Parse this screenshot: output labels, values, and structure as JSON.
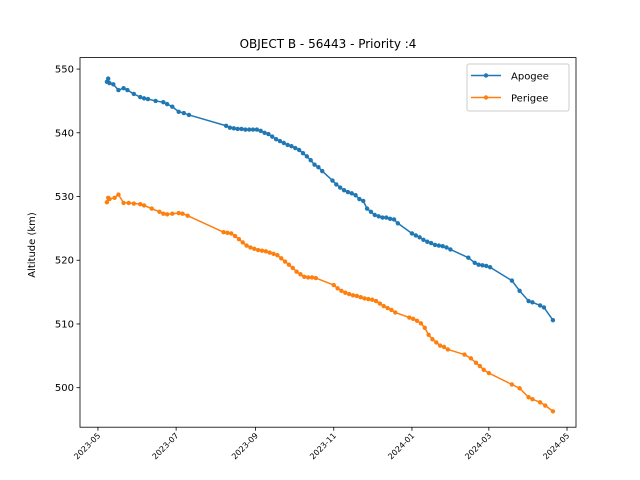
{
  "chart_data": {
    "type": "line",
    "title": "OBJECT B - 56443 - Priority :4",
    "xlabel": "",
    "ylabel": "Altitude (km)",
    "x_type": "date",
    "xlim": [
      "2023-04-17",
      "2024-05-08"
    ],
    "ylim": [
      493.8,
      551.8
    ],
    "xticks": [
      "2023-05",
      "2023-07",
      "2023-09",
      "2023-11",
      "2024-01",
      "2024-03",
      "2024-05"
    ],
    "yticks": [
      500,
      510,
      520,
      530,
      540,
      550
    ],
    "grid": false,
    "legend_position": "top-right",
    "series": [
      {
        "name": "Apogee",
        "color": "#1f77b4",
        "points": [
          [
            "2023-05-08",
            548.0
          ],
          [
            "2023-05-09",
            548.5
          ],
          [
            "2023-05-10",
            547.8
          ],
          [
            "2023-05-13",
            547.6
          ],
          [
            "2023-05-17",
            546.7
          ],
          [
            "2023-05-21",
            547.0
          ],
          [
            "2023-05-24",
            546.7
          ],
          [
            "2023-05-29",
            546.1
          ],
          [
            "2023-06-03",
            545.6
          ],
          [
            "2023-06-06",
            545.4
          ],
          [
            "2023-06-09",
            545.3
          ],
          [
            "2023-06-15",
            545.0
          ],
          [
            "2023-06-21",
            544.8
          ],
          [
            "2023-06-24",
            544.5
          ],
          [
            "2023-06-28",
            544.1
          ],
          [
            "2023-07-03",
            543.3
          ],
          [
            "2023-07-07",
            543.1
          ],
          [
            "2023-07-11",
            542.8
          ],
          [
            "2023-08-09",
            541.1
          ],
          [
            "2023-08-12",
            540.8
          ],
          [
            "2023-08-15",
            540.7
          ],
          [
            "2023-08-18",
            540.6
          ],
          [
            "2023-08-21",
            540.6
          ],
          [
            "2023-08-24",
            540.5
          ],
          [
            "2023-08-27",
            540.5
          ],
          [
            "2023-08-30",
            540.5
          ],
          [
            "2023-09-02",
            540.5
          ],
          [
            "2023-09-05",
            540.3
          ],
          [
            "2023-09-08",
            540.0
          ],
          [
            "2023-09-11",
            539.8
          ],
          [
            "2023-09-14",
            539.4
          ],
          [
            "2023-09-17",
            539.0
          ],
          [
            "2023-09-20",
            538.7
          ],
          [
            "2023-09-23",
            538.4
          ],
          [
            "2023-09-26",
            538.1
          ],
          [
            "2023-09-29",
            537.9
          ],
          [
            "2023-10-02",
            537.6
          ],
          [
            "2023-10-05",
            537.3
          ],
          [
            "2023-10-08",
            536.8
          ],
          [
            "2023-10-11",
            536.3
          ],
          [
            "2023-10-14",
            535.7
          ],
          [
            "2023-10-17",
            535.0
          ],
          [
            "2023-10-20",
            534.6
          ],
          [
            "2023-10-23",
            534.0
          ],
          [
            "2023-10-31",
            532.5
          ],
          [
            "2023-11-03",
            531.9
          ],
          [
            "2023-11-06",
            531.4
          ],
          [
            "2023-11-09",
            531.0
          ],
          [
            "2023-11-12",
            530.7
          ],
          [
            "2023-11-15",
            530.5
          ],
          [
            "2023-11-18",
            530.2
          ],
          [
            "2023-11-21",
            529.6
          ],
          [
            "2023-11-24",
            529.3
          ],
          [
            "2023-11-27",
            528.1
          ],
          [
            "2023-11-30",
            527.6
          ],
          [
            "2023-12-03",
            527.1
          ],
          [
            "2023-12-06",
            526.9
          ],
          [
            "2023-12-09",
            526.7
          ],
          [
            "2023-12-12",
            526.7
          ],
          [
            "2023-12-15",
            526.5
          ],
          [
            "2023-12-18",
            526.4
          ],
          [
            "2023-12-21",
            525.8
          ],
          [
            "2024-01-01",
            524.2
          ],
          [
            "2024-01-04",
            523.9
          ],
          [
            "2024-01-07",
            523.6
          ],
          [
            "2024-01-10",
            523.2
          ],
          [
            "2024-01-13",
            522.9
          ],
          [
            "2024-01-16",
            522.7
          ],
          [
            "2024-01-19",
            522.4
          ],
          [
            "2024-01-22",
            522.3
          ],
          [
            "2024-01-25",
            522.2
          ],
          [
            "2024-01-28",
            522.0
          ],
          [
            "2024-01-31",
            521.7
          ],
          [
            "2024-02-14",
            520.4
          ],
          [
            "2024-02-19",
            519.6
          ],
          [
            "2024-02-22",
            519.3
          ],
          [
            "2024-02-25",
            519.2
          ],
          [
            "2024-02-28",
            519.1
          ],
          [
            "2024-03-02",
            518.9
          ],
          [
            "2024-03-19",
            516.8
          ],
          [
            "2024-03-25",
            515.2
          ],
          [
            "2024-04-01",
            513.6
          ],
          [
            "2024-04-04",
            513.4
          ],
          [
            "2024-04-10",
            512.9
          ],
          [
            "2024-04-13",
            512.6
          ],
          [
            "2024-04-20",
            510.6
          ]
        ]
      },
      {
        "name": "Perigee",
        "color": "#ff7f0e",
        "points": [
          [
            "2023-05-08",
            529.1
          ],
          [
            "2023-05-09",
            529.8
          ],
          [
            "2023-05-10",
            529.6
          ],
          [
            "2023-05-14",
            529.8
          ],
          [
            "2023-05-17",
            530.3
          ],
          [
            "2023-05-21",
            529.0
          ],
          [
            "2023-05-25",
            529.0
          ],
          [
            "2023-05-29",
            528.9
          ],
          [
            "2023-06-03",
            528.8
          ],
          [
            "2023-06-06",
            528.6
          ],
          [
            "2023-06-12",
            528.1
          ],
          [
            "2023-06-18",
            527.6
          ],
          [
            "2023-06-21",
            527.3
          ],
          [
            "2023-06-24",
            527.2
          ],
          [
            "2023-06-28",
            527.3
          ],
          [
            "2023-07-03",
            527.4
          ],
          [
            "2023-07-06",
            527.3
          ],
          [
            "2023-07-10",
            527.0
          ],
          [
            "2023-08-07",
            524.4
          ],
          [
            "2023-08-10",
            524.3
          ],
          [
            "2023-08-13",
            524.2
          ],
          [
            "2023-08-16",
            523.8
          ],
          [
            "2023-08-19",
            523.3
          ],
          [
            "2023-08-22",
            522.8
          ],
          [
            "2023-08-25",
            522.3
          ],
          [
            "2023-08-28",
            522.0
          ],
          [
            "2023-08-31",
            521.8
          ],
          [
            "2023-09-03",
            521.6
          ],
          [
            "2023-09-06",
            521.5
          ],
          [
            "2023-09-09",
            521.4
          ],
          [
            "2023-09-12",
            521.2
          ],
          [
            "2023-09-15",
            521.0
          ],
          [
            "2023-09-18",
            520.8
          ],
          [
            "2023-09-21",
            520.3
          ],
          [
            "2023-09-24",
            519.8
          ],
          [
            "2023-09-27",
            519.3
          ],
          [
            "2023-09-30",
            518.8
          ],
          [
            "2023-10-03",
            518.2
          ],
          [
            "2023-10-06",
            517.8
          ],
          [
            "2023-10-09",
            517.4
          ],
          [
            "2023-10-12",
            517.3
          ],
          [
            "2023-10-15",
            517.3
          ],
          [
            "2023-10-18",
            517.2
          ],
          [
            "2023-11-01",
            516.1
          ],
          [
            "2023-11-04",
            515.6
          ],
          [
            "2023-11-07",
            515.2
          ],
          [
            "2023-11-10",
            514.9
          ],
          [
            "2023-11-13",
            514.7
          ],
          [
            "2023-11-16",
            514.5
          ],
          [
            "2023-11-19",
            514.4
          ],
          [
            "2023-11-22",
            514.2
          ],
          [
            "2023-11-25",
            514.0
          ],
          [
            "2023-11-28",
            513.9
          ],
          [
            "2023-12-01",
            513.8
          ],
          [
            "2023-12-04",
            513.6
          ],
          [
            "2023-12-07",
            513.2
          ],
          [
            "2023-12-10",
            512.8
          ],
          [
            "2023-12-13",
            512.5
          ],
          [
            "2023-12-16",
            512.2
          ],
          [
            "2023-12-19",
            511.8
          ],
          [
            "2023-12-30",
            511.0
          ],
          [
            "2024-01-02",
            510.8
          ],
          [
            "2024-01-05",
            510.5
          ],
          [
            "2024-01-08",
            510.1
          ],
          [
            "2024-01-11",
            509.4
          ],
          [
            "2024-01-14",
            508.3
          ],
          [
            "2024-01-17",
            507.6
          ],
          [
            "2024-01-20",
            507.1
          ],
          [
            "2024-01-23",
            506.6
          ],
          [
            "2024-01-26",
            506.4
          ],
          [
            "2024-01-29",
            506.0
          ],
          [
            "2024-02-11",
            505.2
          ],
          [
            "2024-02-16",
            504.6
          ],
          [
            "2024-02-20",
            503.9
          ],
          [
            "2024-02-23",
            503.4
          ],
          [
            "2024-02-26",
            502.8
          ],
          [
            "2024-03-01",
            502.3
          ],
          [
            "2024-03-19",
            500.5
          ],
          [
            "2024-03-25",
            499.9
          ],
          [
            "2024-04-01",
            498.5
          ],
          [
            "2024-04-04",
            498.2
          ],
          [
            "2024-04-10",
            497.7
          ],
          [
            "2024-04-14",
            497.2
          ],
          [
            "2024-04-20",
            496.3
          ]
        ]
      }
    ]
  }
}
